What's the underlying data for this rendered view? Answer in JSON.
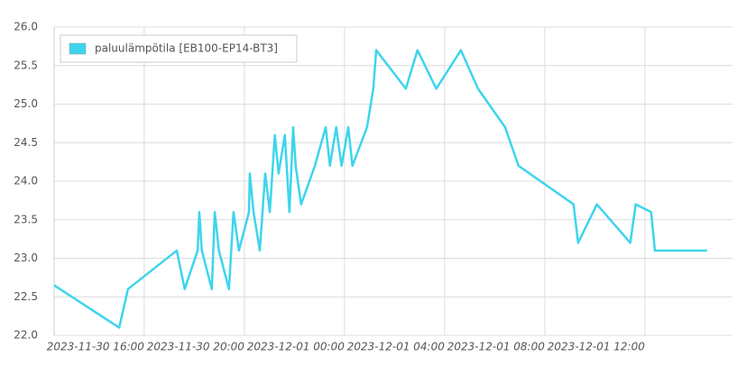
{
  "chart_data": {
    "type": "line",
    "x": [
      "2023-11-30 12:24",
      "2023-11-30 15:00",
      "2023-11-30 15:21",
      "2023-11-30 17:18",
      "2023-11-30 17:37",
      "2023-11-30 18:08",
      "2023-11-30 18:12",
      "2023-11-30 18:18",
      "2023-11-30 18:42",
      "2023-11-30 18:49",
      "2023-11-30 18:59",
      "2023-11-30 19:23",
      "2023-11-30 19:34",
      "2023-11-30 19:47",
      "2023-11-30 20:11",
      "2023-11-30 20:13",
      "2023-11-30 20:22",
      "2023-11-30 20:37",
      "2023-11-30 20:50",
      "2023-11-30 21:01",
      "2023-11-30 21:13",
      "2023-11-30 21:22",
      "2023-11-30 21:37",
      "2023-11-30 21:48",
      "2023-11-30 21:57",
      "2023-11-30 22:03",
      "2023-11-30 22:16",
      "2023-11-30 22:49",
      "2023-11-30 23:15",
      "2023-11-30 23:25",
      "2023-11-30 23:40",
      "2023-11-30 23:53",
      "2023-12-01 00:09",
      "2023-12-01 00:19",
      "2023-12-01 00:54",
      "2023-12-01 01:09",
      "2023-12-01 01:16",
      "2023-12-01 02:27",
      "2023-12-01 02:55",
      "2023-12-01 03:40",
      "2023-12-01 04:39",
      "2023-12-01 05:20",
      "2023-12-01 06:25",
      "2023-12-01 06:57",
      "2023-12-01 09:09",
      "2023-12-01 09:20",
      "2023-12-01 10:05",
      "2023-12-01 11:25",
      "2023-12-01 11:38",
      "2023-12-01 12:15",
      "2023-12-01 12:24",
      "2023-12-01 14:29"
    ],
    "series": [
      {
        "name": "paluulämpötila [EB100-EP14-BT3]",
        "color": "#3dd5ec",
        "values": [
          22.65,
          22.1,
          22.6,
          23.1,
          22.6,
          23.1,
          23.6,
          23.1,
          22.6,
          23.6,
          23.1,
          22.6,
          23.6,
          23.1,
          23.6,
          24.1,
          23.6,
          23.1,
          24.1,
          23.6,
          24.6,
          24.1,
          24.6,
          23.6,
          24.7,
          24.2,
          23.7,
          24.2,
          24.7,
          24.2,
          24.7,
          24.2,
          24.7,
          24.2,
          24.7,
          25.2,
          25.7,
          25.2,
          25.7,
          25.2,
          25.7,
          25.2,
          24.7,
          24.2,
          23.7,
          23.2,
          23.7,
          23.2,
          23.7,
          23.6,
          23.1,
          23.1
        ]
      }
    ],
    "xlim": [
      "2023-11-30 12:24",
      "2023-12-01 15:30"
    ],
    "xticks": [
      "2023-11-30 16:00",
      "2023-11-30 20:00",
      "2023-12-01 00:00",
      "2023-12-01 04:00",
      "2023-12-01 08:00",
      "2023-12-01 12:00"
    ],
    "ylim": [
      22,
      26
    ],
    "yticks": [
      {
        "value": 22,
        "label": "22.0"
      },
      22.5,
      {
        "value": 23,
        "label": "23.0"
      },
      23.5,
      {
        "value": 24,
        "label": "24.0"
      },
      24.5,
      {
        "value": 25,
        "label": "25.0"
      },
      25.5,
      {
        "value": 26,
        "label": "26.0"
      }
    ],
    "grid": true,
    "legend": "top-left"
  }
}
